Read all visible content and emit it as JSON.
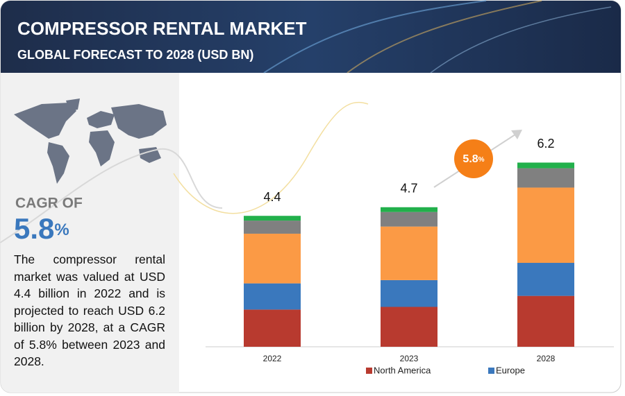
{
  "header": {
    "title": "COMPRESSOR RENTAL MARKET",
    "subtitle": "GLOBAL FORECAST TO 2028 (USD BN)"
  },
  "sidebar": {
    "cagr_heading": "CAGR OF",
    "cagr_value": "5.8",
    "cagr_unit": "%",
    "text": "The compressor rental market was valued at USD 4.4 billion in 2022 and is projected to reach USD 6.2 billion by 2028, at a CAGR of 5.8% between 2023 and 2028."
  },
  "chart_data": {
    "type": "stacked_bar",
    "categories": [
      "2022",
      "2023",
      "2028"
    ],
    "totals": [
      4.4,
      4.7,
      6.2
    ],
    "cagr_badge": {
      "value": "5.8",
      "unit": "%"
    },
    "series": [
      {
        "name": "North America",
        "color": "#b83a2f",
        "values": [
          1.25,
          1.34,
          1.71
        ]
      },
      {
        "name": "Europe",
        "color": "#3a78bd",
        "values": [
          0.88,
          0.9,
          1.11
        ]
      },
      {
        "color": "#fb9a45",
        "values": [
          1.67,
          1.8,
          2.53
        ]
      },
      {
        "color": "#808080",
        "values": [
          0.44,
          0.49,
          0.65
        ]
      },
      {
        "color": "#22b04b",
        "values": [
          0.16,
          0.16,
          0.19
        ]
      }
    ]
  }
}
